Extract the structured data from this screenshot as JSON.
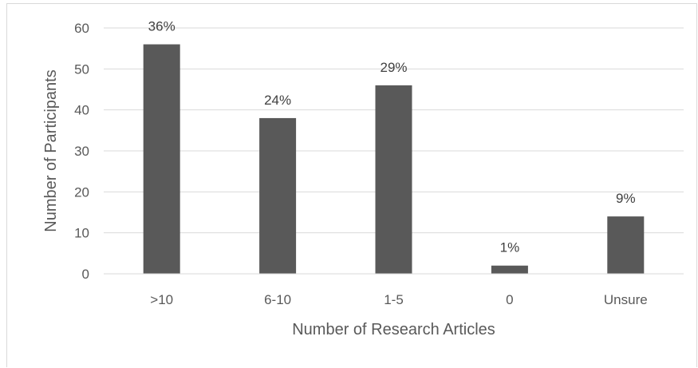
{
  "chart_data": {
    "type": "bar",
    "categories": [
      ">10",
      "6-10",
      "1-5",
      "0",
      "Unsure"
    ],
    "values": [
      56,
      38,
      46,
      2,
      14
    ],
    "data_labels": [
      "36%",
      "24%",
      "29%",
      "1%",
      "9%"
    ],
    "title": "",
    "xlabel": "Number of Research Articles",
    "ylabel": "Number of Participants",
    "ylim": [
      0,
      60
    ],
    "yticks": [
      0,
      10,
      20,
      30,
      40,
      50,
      60
    ],
    "grid": true,
    "legend": "none",
    "bar_color": "#595959",
    "grid_color": "#d9d9d9"
  }
}
